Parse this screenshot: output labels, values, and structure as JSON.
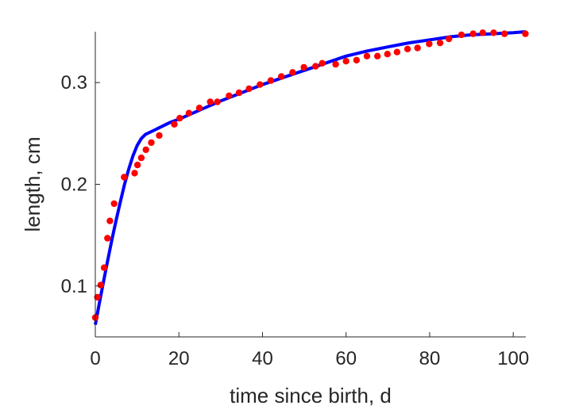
{
  "chart_data": {
    "type": "scatter",
    "xlabel": "time since birth, d",
    "ylabel": "length, cm",
    "xlim": [
      0,
      103
    ],
    "ylim": [
      0.05,
      0.35
    ],
    "xticks": [
      0,
      20,
      40,
      60,
      80,
      100
    ],
    "yticks": [
      0.1,
      0.2,
      0.3
    ],
    "xtick_labels": [
      "0",
      "20",
      "40",
      "60",
      "80",
      "100"
    ],
    "ytick_labels": [
      "0.1",
      "0.2",
      "0.3"
    ],
    "grid": false,
    "series": [
      {
        "kind": "points",
        "color": "#ff0000",
        "x": [
          0,
          0.5,
          1.3,
          2.1,
          2.9,
          3.5,
          4.5,
          6.9,
          9.4,
          10.1,
          11.0,
          12.1,
          13.4,
          15.3,
          18.9,
          20.2,
          22.4,
          24.9,
          27.5,
          29.2,
          32.0,
          34.4,
          36.8,
          39.4,
          42.0,
          44.5,
          47.2,
          49.9,
          52.7,
          54.3,
          57.5,
          60.0,
          62.5,
          65.0,
          67.5,
          69.9,
          72.2,
          74.7,
          77.1,
          79.9,
          82.5,
          84.6,
          87.6,
          90.4,
          92.7,
          95.3,
          97.9,
          102.9
        ],
        "y": [
          0.069,
          0.089,
          0.101,
          0.118,
          0.147,
          0.164,
          0.181,
          0.207,
          0.211,
          0.219,
          0.226,
          0.234,
          0.241,
          0.248,
          0.259,
          0.265,
          0.27,
          0.275,
          0.281,
          0.281,
          0.287,
          0.29,
          0.294,
          0.298,
          0.302,
          0.306,
          0.31,
          0.315,
          0.316,
          0.319,
          0.318,
          0.321,
          0.322,
          0.326,
          0.326,
          0.328,
          0.33,
          0.333,
          0.334,
          0.338,
          0.339,
          0.343,
          0.347,
          0.348,
          0.349,
          0.349,
          0.348,
          0.348
        ]
      },
      {
        "kind": "curve",
        "color": "#0000ff",
        "x": [
          0,
          1,
          2,
          3,
          4,
          5,
          6,
          7,
          8,
          9,
          10,
          11,
          12,
          14,
          16,
          18,
          20,
          25,
          30,
          35,
          40,
          45,
          50,
          55,
          60,
          65,
          70,
          75,
          80,
          85,
          90,
          95,
          100,
          103
        ],
        "y": [
          0.062,
          0.084,
          0.105,
          0.126,
          0.146,
          0.165,
          0.183,
          0.2,
          0.215,
          0.228,
          0.238,
          0.245,
          0.249,
          0.253,
          0.257,
          0.261,
          0.264,
          0.273,
          0.282,
          0.29,
          0.298,
          0.305,
          0.312,
          0.319,
          0.326,
          0.331,
          0.335,
          0.339,
          0.342,
          0.345,
          0.347,
          0.348,
          0.349,
          0.35
        ]
      }
    ]
  }
}
